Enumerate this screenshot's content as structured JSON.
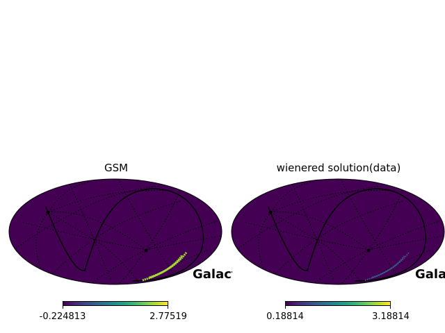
{
  "panels": [
    {
      "title": "GSM",
      "coord_label": "Galactic",
      "colorbar": {
        "min_label": "-0.224813",
        "max_label": "2.77519"
      },
      "colormap": "viridis",
      "background_color": "#440154",
      "feature_color": "#a8db34"
    },
    {
      "title": "wienered solution(data)",
      "coord_label": "Galactic",
      "colorbar": {
        "min_label": "0.18814",
        "max_label": "3.18814"
      },
      "colormap": "viridis",
      "background_color": "#440154",
      "feature_color": "#3e5f8f"
    }
  ]
}
